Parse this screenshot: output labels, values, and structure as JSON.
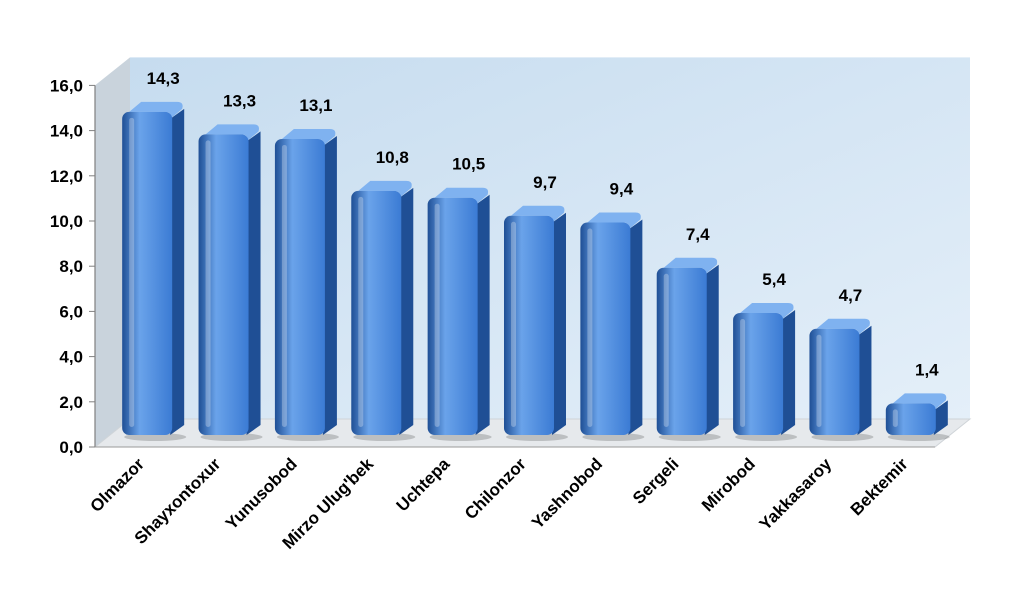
{
  "chart_data": {
    "type": "bar",
    "categories": [
      "Olmazor",
      "Shayxontoxur",
      "Yunusobod",
      "Mirzo Ulug'bek",
      "Uchtepa",
      "Chilonzor",
      "Yashnobod",
      "Sergeli",
      "Mirobod",
      "Yakkasaroy",
      "Bektemir"
    ],
    "values": [
      14.3,
      13.3,
      13.1,
      10.8,
      10.5,
      9.7,
      9.4,
      7.4,
      5.4,
      4.7,
      1.4
    ],
    "value_labels": [
      "14,3",
      "13,3",
      "13,1",
      "10,8",
      "10,5",
      "9,7",
      "9,4",
      "7,4",
      "5,4",
      "4,7",
      "1,4"
    ],
    "yticks": [
      "0,0",
      "2,0",
      "4,0",
      "6,0",
      "8,0",
      "10,0",
      "12,0",
      "14,0",
      "16,0"
    ],
    "ylim": [
      0,
      16
    ],
    "title": "",
    "xlabel": "",
    "ylabel": "",
    "grid": false,
    "legend": "none",
    "style": "3d-cylinder-bars",
    "colors": {
      "bar": "#3b7bd4",
      "bar_light": "#6aa3ea",
      "bar_dark": "#1f4f95",
      "bar_top": "#7fb2f0",
      "back_wall": "#d5e7f6",
      "side_wall": "#c9d3dc",
      "floor": "#e6e9ec"
    }
  }
}
